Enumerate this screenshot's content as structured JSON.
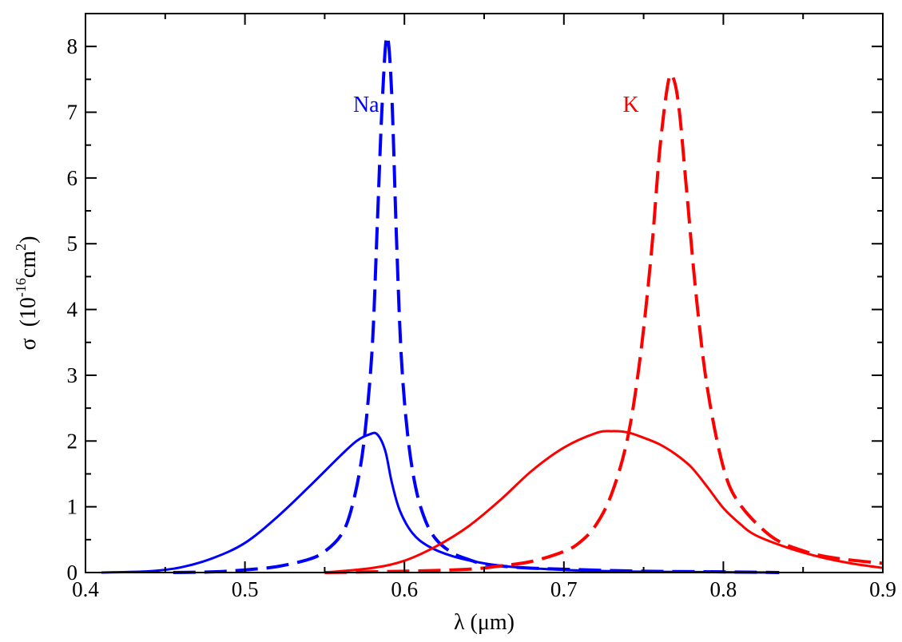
{
  "chart_data": {
    "type": "line",
    "xlabel": "λ  (μm)",
    "ylabel": {
      "symbol": "σ",
      "open": "  (10",
      "exp1": "-16",
      "mid": "cm",
      "exp2": "2",
      "close": ")"
    },
    "xlim": [
      0.4,
      0.9
    ],
    "ylim": [
      0,
      8.5
    ],
    "xticks": [
      "0.4",
      "0.5",
      "0.6",
      "0.7",
      "0.8",
      "0.9"
    ],
    "yticks": [
      "0",
      "1",
      "2",
      "3",
      "4",
      "5",
      "6",
      "7",
      "8"
    ],
    "grid": false,
    "legend": "none",
    "annotations": [
      {
        "text": "Na",
        "color": "#0000ff",
        "x": 0.576,
        "y": 7.13
      },
      {
        "text": "K",
        "color": "#ff0000",
        "x": 0.742,
        "y": 7.13
      }
    ],
    "series": [
      {
        "element": "Na",
        "style": "solid",
        "color": "#0000ff",
        "x": [
          0.41,
          0.44,
          0.46,
          0.48,
          0.5,
          0.52,
          0.54,
          0.56,
          0.57,
          0.578,
          0.583,
          0.588,
          0.592,
          0.597,
          0.605,
          0.615,
          0.63,
          0.65,
          0.67,
          0.7,
          0.73,
          0.76,
          0.8,
          0.835
        ],
        "y": [
          0.0,
          0.02,
          0.08,
          0.22,
          0.45,
          0.84,
          1.3,
          1.78,
          2.0,
          2.1,
          2.1,
          1.85,
          1.38,
          0.95,
          0.6,
          0.4,
          0.25,
          0.14,
          0.08,
          0.04,
          0.02,
          0.01,
          0.005,
          0.0
        ]
      },
      {
        "element": "Na",
        "style": "dashed",
        "color": "#0000ff",
        "x": [
          0.455,
          0.48,
          0.5,
          0.52,
          0.54,
          0.55,
          0.56,
          0.566,
          0.572,
          0.576,
          0.58,
          0.583,
          0.586,
          0.589,
          0.592,
          0.595,
          0.598,
          0.602,
          0.607,
          0.613,
          0.62,
          0.63,
          0.64,
          0.65,
          0.67,
          0.7,
          0.75,
          0.8,
          0.835
        ],
        "y": [
          0.0,
          0.01,
          0.04,
          0.09,
          0.2,
          0.32,
          0.56,
          0.9,
          1.55,
          2.3,
          3.5,
          5.3,
          7.1,
          8.15,
          7.3,
          5.1,
          3.3,
          2.1,
          1.3,
          0.8,
          0.5,
          0.3,
          0.2,
          0.13,
          0.08,
          0.05,
          0.02,
          0.01,
          0.0
        ]
      },
      {
        "element": "K",
        "style": "solid",
        "color": "#ff0000",
        "x": [
          0.55,
          0.58,
          0.6,
          0.62,
          0.64,
          0.66,
          0.68,
          0.7,
          0.72,
          0.73,
          0.74,
          0.75,
          0.76,
          0.77,
          0.78,
          0.79,
          0.8,
          0.81,
          0.82,
          0.84,
          0.86,
          0.88,
          0.9
        ],
        "y": [
          0.0,
          0.07,
          0.18,
          0.4,
          0.7,
          1.1,
          1.55,
          1.9,
          2.12,
          2.15,
          2.13,
          2.05,
          1.95,
          1.8,
          1.6,
          1.3,
          0.98,
          0.75,
          0.57,
          0.38,
          0.24,
          0.14,
          0.07
        ]
      },
      {
        "element": "K",
        "style": "dashed",
        "color": "#ff0000",
        "x": [
          0.55,
          0.6,
          0.64,
          0.66,
          0.68,
          0.7,
          0.71,
          0.72,
          0.73,
          0.74,
          0.748,
          0.755,
          0.76,
          0.765,
          0.768,
          0.772,
          0.777,
          0.783,
          0.79,
          0.8,
          0.81,
          0.83,
          0.85,
          0.87,
          0.9
        ],
        "y": [
          0.0,
          0.02,
          0.05,
          0.1,
          0.17,
          0.32,
          0.46,
          0.72,
          1.2,
          2.05,
          3.3,
          4.9,
          6.4,
          7.4,
          7.55,
          7.1,
          5.8,
          4.2,
          2.8,
          1.6,
          1.05,
          0.55,
          0.33,
          0.22,
          0.14
        ]
      }
    ]
  }
}
